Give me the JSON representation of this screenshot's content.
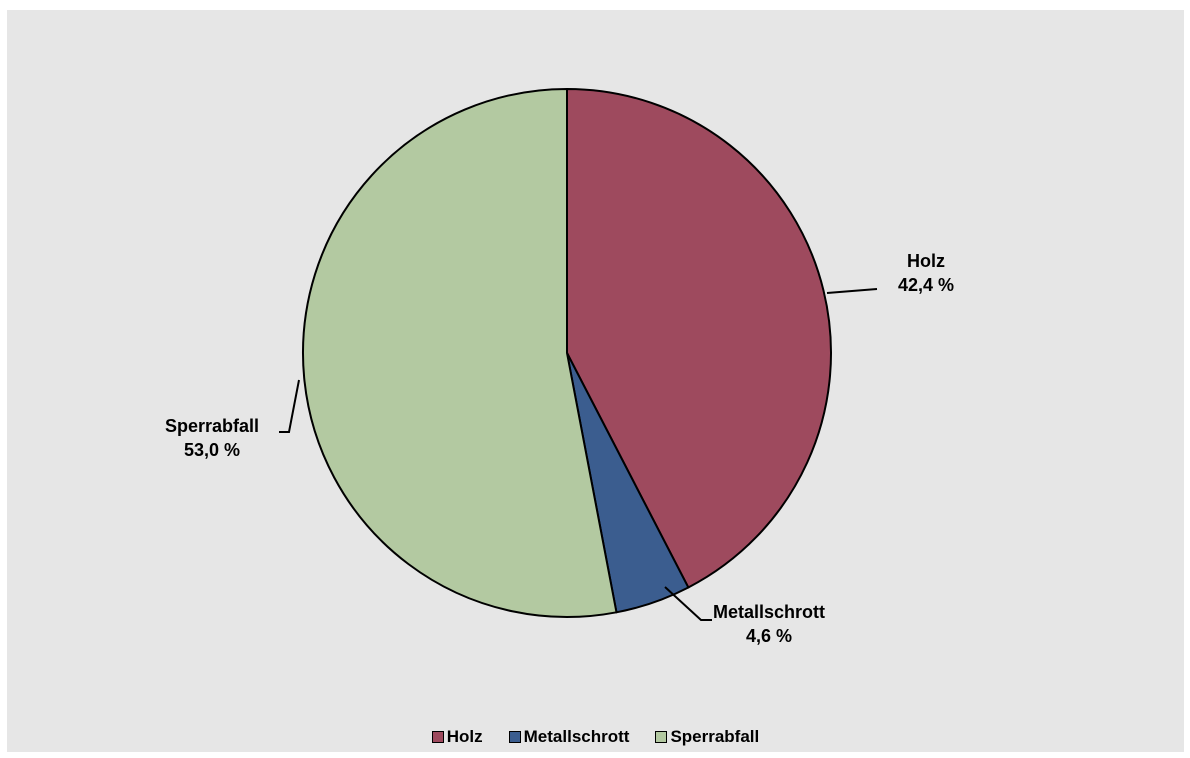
{
  "chart_data": {
    "type": "pie",
    "categories": [
      "Holz",
      "Metallschrott",
      "Sperrabfall"
    ],
    "values": [
      42.4,
      4.6,
      53.0
    ],
    "value_labels": [
      "42,4 %",
      "4,6 %",
      "53,0 %"
    ],
    "colors": [
      "#9e4a5e",
      "#3b5d8f",
      "#b3c9a1"
    ],
    "start_angle": "12 o'clock",
    "direction": "clockwise",
    "legend": "bottom"
  }
}
